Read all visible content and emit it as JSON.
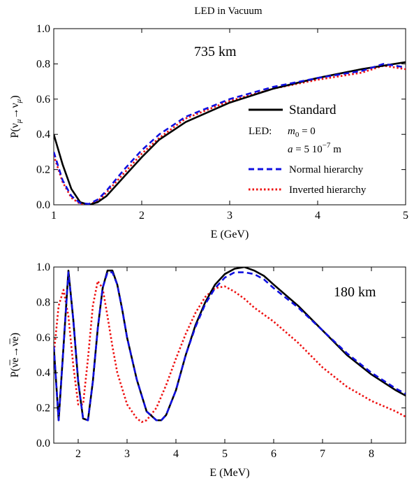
{
  "figure_title": "LED in Vacuum",
  "panel_top": {
    "annotation": "735 km",
    "xlabel": "E (GeV)",
    "ylabel_main": "P(ν",
    "ylabel_sub1": "μ",
    "ylabel_mid": "→ν",
    "ylabel_sub2": "μ",
    "ylabel_end": ")",
    "legend": {
      "standard": "Standard",
      "led_prefix": "LED:",
      "m0_label": "m",
      "m0_sub": "0",
      "m0_value": " = 0",
      "a_label": "a",
      "a_value": "  = 5 10",
      "a_exp": "−7",
      "a_unit": " m",
      "normal": "Normal hierarchy",
      "inverted": "Inverted hierarchy"
    }
  },
  "panel_bottom": {
    "annotation": "180 km",
    "xlabel": "E (MeV)",
    "ylabel": "P(ν̅e→ν̅e)"
  },
  "colors": {
    "standard": "#000000",
    "normal": "#1010e0",
    "inverted": "#ee1010"
  },
  "chart_data": [
    {
      "type": "line",
      "title": "LED in Vacuum",
      "annotation": "735 km",
      "xlabel": "E (GeV)",
      "ylabel": "P(νμ→νμ)",
      "xlim": [
        1,
        5
      ],
      "ylim": [
        0,
        1
      ],
      "x_ticks": [
        "1",
        "2",
        "3",
        "4",
        "5"
      ],
      "y_ticks": [
        "0.0",
        "0.2",
        "0.4",
        "0.6",
        "0.8",
        "1.0"
      ],
      "legend_position": "center-right",
      "series": [
        {
          "name": "Standard",
          "style": "solid",
          "x": [
            1.0,
            1.1,
            1.2,
            1.3,
            1.4,
            1.5,
            1.6,
            1.8,
            2.0,
            2.2,
            2.5,
            3.0,
            3.5,
            4.0,
            4.5,
            5.0
          ],
          "y": [
            0.4,
            0.23,
            0.09,
            0.015,
            0.0,
            0.015,
            0.05,
            0.16,
            0.27,
            0.37,
            0.47,
            0.58,
            0.66,
            0.72,
            0.77,
            0.81
          ]
        },
        {
          "name": "Normal hierarchy",
          "style": "dashed",
          "x": [
            1.0,
            1.1,
            1.2,
            1.3,
            1.4,
            1.5,
            1.6,
            1.8,
            2.0,
            2.2,
            2.5,
            3.0,
            3.5,
            4.0,
            4.5,
            4.75,
            5.0
          ],
          "y": [
            0.3,
            0.14,
            0.05,
            0.01,
            0.005,
            0.03,
            0.08,
            0.2,
            0.31,
            0.4,
            0.5,
            0.6,
            0.67,
            0.72,
            0.76,
            0.8,
            0.78
          ]
        },
        {
          "name": "Inverted hierarchy",
          "style": "dotted",
          "x": [
            1.0,
            1.1,
            1.2,
            1.3,
            1.4,
            1.5,
            1.6,
            1.8,
            2.0,
            2.2,
            2.5,
            3.0,
            3.5,
            4.0,
            4.5,
            4.75,
            5.0
          ],
          "y": [
            0.28,
            0.13,
            0.04,
            0.005,
            0.003,
            0.02,
            0.07,
            0.18,
            0.29,
            0.38,
            0.49,
            0.59,
            0.66,
            0.71,
            0.75,
            0.79,
            0.77
          ]
        }
      ]
    },
    {
      "type": "line",
      "annotation": "180 km",
      "xlabel": "E (MeV)",
      "ylabel": "P(ν̅e→ν̅e)",
      "xlim": [
        1.5,
        8.7
      ],
      "ylim": [
        0,
        1
      ],
      "x_ticks": [
        "2",
        "3",
        "4",
        "5",
        "6",
        "7",
        "8"
      ],
      "y_ticks": [
        "0.0",
        "0.2",
        "0.4",
        "0.6",
        "0.8",
        "1.0"
      ],
      "series": [
        {
          "name": "Standard",
          "style": "solid",
          "x": [
            1.5,
            1.6,
            1.7,
            1.8,
            1.9,
            2.0,
            2.1,
            2.2,
            2.3,
            2.4,
            2.5,
            2.6,
            2.7,
            2.8,
            2.9,
            3.0,
            3.2,
            3.4,
            3.6,
            3.7,
            3.8,
            4.0,
            4.2,
            4.4,
            4.6,
            4.8,
            5.0,
            5.2,
            5.4,
            5.6,
            5.8,
            6.0,
            6.5,
            7.0,
            7.5,
            8.0,
            8.5,
            8.7
          ],
          "y": [
            0.55,
            0.13,
            0.55,
            0.98,
            0.7,
            0.35,
            0.14,
            0.13,
            0.35,
            0.65,
            0.88,
            0.98,
            0.98,
            0.9,
            0.76,
            0.6,
            0.36,
            0.18,
            0.13,
            0.13,
            0.16,
            0.3,
            0.5,
            0.67,
            0.8,
            0.9,
            0.96,
            0.99,
            1.0,
            0.98,
            0.95,
            0.9,
            0.78,
            0.64,
            0.5,
            0.39,
            0.3,
            0.27
          ]
        },
        {
          "name": "Normal hierarchy",
          "style": "dashed",
          "x": [
            1.5,
            1.6,
            1.7,
            1.8,
            1.9,
            2.0,
            2.1,
            2.2,
            2.3,
            2.4,
            2.5,
            2.6,
            2.7,
            2.8,
            2.9,
            3.0,
            3.2,
            3.4,
            3.6,
            3.7,
            3.8,
            4.0,
            4.2,
            4.4,
            4.6,
            4.8,
            5.0,
            5.2,
            5.4,
            5.6,
            5.8,
            6.0,
            6.5,
            7.0,
            7.5,
            8.0,
            8.5,
            8.7
          ],
          "y": [
            0.55,
            0.13,
            0.55,
            0.97,
            0.7,
            0.35,
            0.14,
            0.13,
            0.35,
            0.65,
            0.88,
            0.97,
            0.97,
            0.9,
            0.76,
            0.6,
            0.36,
            0.18,
            0.13,
            0.13,
            0.16,
            0.3,
            0.5,
            0.66,
            0.79,
            0.88,
            0.94,
            0.97,
            0.97,
            0.96,
            0.93,
            0.88,
            0.77,
            0.64,
            0.51,
            0.4,
            0.31,
            0.28
          ]
        },
        {
          "name": "Inverted hierarchy",
          "style": "dotted",
          "x": [
            1.5,
            1.6,
            1.7,
            1.8,
            1.9,
            2.0,
            2.1,
            2.2,
            2.3,
            2.4,
            2.5,
            2.6,
            2.7,
            2.8,
            3.0,
            3.2,
            3.3,
            3.4,
            3.6,
            3.8,
            4.0,
            4.2,
            4.4,
            4.6,
            4.8,
            5.0,
            5.2,
            5.4,
            5.6,
            5.8,
            6.0,
            6.5,
            7.0,
            7.5,
            8.0,
            8.5,
            8.7
          ],
          "y": [
            0.5,
            0.78,
            0.87,
            0.72,
            0.44,
            0.22,
            0.22,
            0.48,
            0.78,
            0.92,
            0.88,
            0.72,
            0.55,
            0.4,
            0.22,
            0.14,
            0.12,
            0.13,
            0.2,
            0.33,
            0.48,
            0.62,
            0.74,
            0.83,
            0.88,
            0.89,
            0.86,
            0.82,
            0.77,
            0.73,
            0.69,
            0.57,
            0.43,
            0.32,
            0.24,
            0.18,
            0.15
          ]
        }
      ]
    }
  ]
}
